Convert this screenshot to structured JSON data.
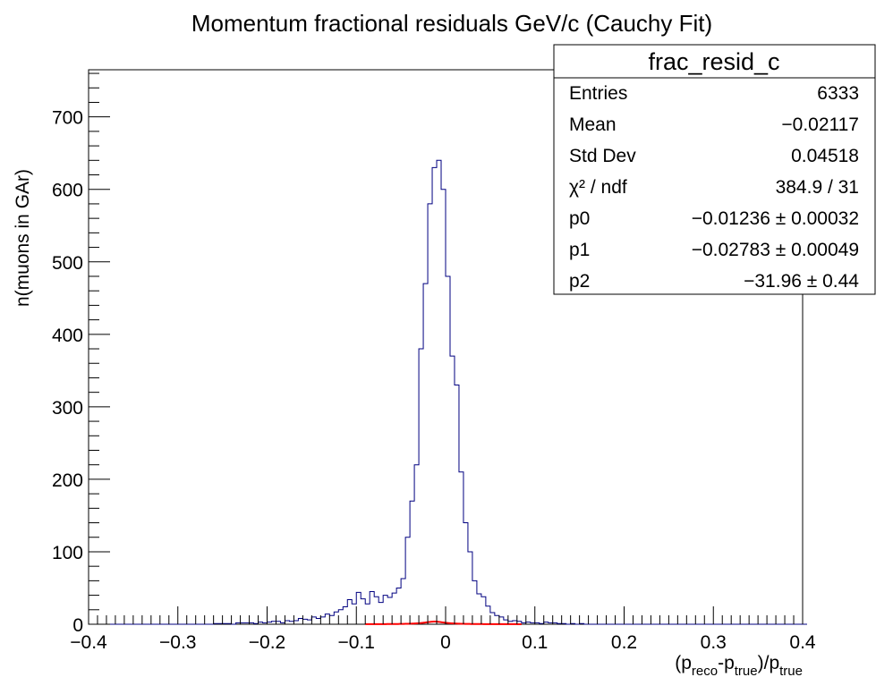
{
  "chart_data": {
    "type": "bar",
    "title": "Momentum fractional residuals GeV/c (Cauchy Fit)",
    "xlabel": "(p_reco-p_true)/p_true",
    "xlabel_parts": {
      "p": "p",
      "reco": "reco",
      "dash": "-",
      "true": "true",
      "close": ")/",
      "open": "("
    },
    "ylabel": "n(muons in GAr)",
    "xlim": [
      -0.4,
      0.4
    ],
    "ylim": [
      0,
      765
    ],
    "x_ticks": [
      -0.4,
      -0.3,
      -0.2,
      -0.1,
      0,
      0.1,
      0.2,
      0.3,
      0.4
    ],
    "x_tick_labels": [
      "−0.4",
      "−0.3",
      "−0.2",
      "−0.1",
      "0",
      "0.1",
      "0.2",
      "0.3",
      "0.4"
    ],
    "y_ticks": [
      0,
      100,
      200,
      300,
      400,
      500,
      600,
      700
    ],
    "y_tick_labels": [
      "0",
      "100",
      "200",
      "300",
      "400",
      "500",
      "600",
      "700"
    ],
    "bin_low": -0.4,
    "bin_width": 0.005,
    "histogram_values": [
      0,
      0,
      0,
      0,
      0,
      0,
      0,
      0,
      0,
      0,
      0,
      0,
      0,
      0,
      0,
      0,
      0,
      0,
      0,
      0,
      0,
      0,
      0,
      0,
      0,
      0,
      0,
      0,
      1,
      1,
      1,
      1,
      0,
      2,
      2,
      2,
      2,
      1,
      3,
      2,
      3,
      4,
      4,
      2,
      5,
      4,
      5,
      8,
      7,
      6,
      10,
      8,
      10,
      14,
      12,
      17,
      20,
      24,
      34,
      28,
      44,
      35,
      28,
      45,
      38,
      30,
      40,
      37,
      43,
      50,
      63,
      120,
      170,
      220,
      380,
      470,
      580,
      630,
      640,
      600,
      480,
      370,
      330,
      210,
      140,
      100,
      60,
      42,
      38,
      25,
      16,
      12,
      10,
      6,
      4,
      5,
      4,
      2,
      3,
      2,
      2,
      1,
      3,
      2,
      2,
      1,
      1,
      0,
      1,
      0,
      1,
      0,
      0,
      0,
      0,
      0,
      0,
      0,
      0,
      0,
      0,
      0,
      0,
      0,
      0,
      0,
      0,
      0,
      0,
      0,
      0,
      0,
      0,
      0,
      0,
      0,
      0,
      0,
      0,
      0,
      0,
      0,
      0,
      0,
      0,
      0,
      0,
      0,
      0,
      0,
      0,
      0,
      0,
      0,
      0,
      0,
      0,
      0,
      0,
      0,
      0
    ],
    "histogram_color": "#000080",
    "fit": {
      "name": "Cauchy",
      "color": "#ff0000",
      "range": [
        -0.09,
        0.085
      ],
      "p0": -0.01236,
      "p1": -0.02783,
      "p2": -31.96
    },
    "legend_position": "top-right",
    "grid": false
  },
  "stats_box": {
    "title": "frac_resid_c",
    "rows": [
      {
        "label": "Entries",
        "value": "6333"
      },
      {
        "label": "Mean",
        "value": "−0.02117"
      },
      {
        "label": "Std Dev",
        "value": "0.04518"
      },
      {
        "label": "χ² / ndf",
        "value": "384.9 / 31"
      },
      {
        "label": "p0",
        "value": "−0.01236 ± 0.00032"
      },
      {
        "label": "p1",
        "value": "−0.02783 ± 0.00049"
      },
      {
        "label": "p2",
        "value": "−31.96 ± 0.44"
      }
    ]
  }
}
